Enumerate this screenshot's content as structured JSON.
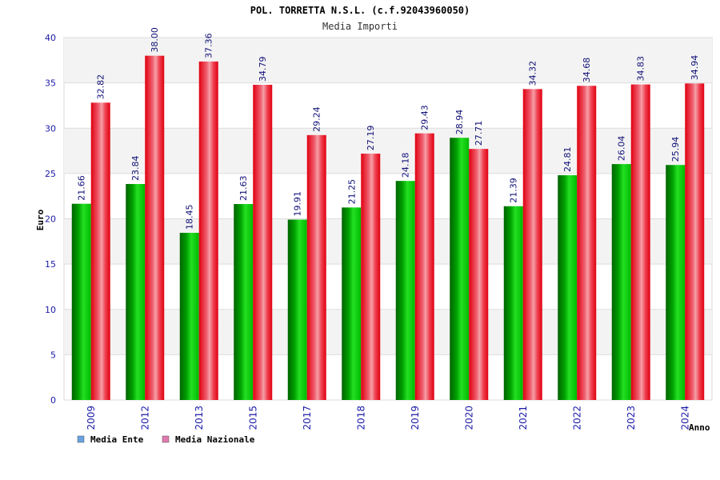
{
  "chart_data": {
    "type": "bar",
    "title": "POL. TORRETTA N.S.L. (c.f.92043960050)",
    "subtitle": "Media Importi",
    "xlabel": "Anno",
    "ylabel": "Euro",
    "ylim": [
      0,
      40
    ],
    "yticks": [
      0,
      5,
      10,
      15,
      20,
      25,
      30,
      35,
      40
    ],
    "grid": true,
    "legend_position": "bottom-left",
    "categories": [
      "2009",
      "2012",
      "2013",
      "2015",
      "2017",
      "2018",
      "2019",
      "2020",
      "2021",
      "2022",
      "2023",
      "2024"
    ],
    "series": [
      {
        "name": "Media Ente",
        "color": "#00b000",
        "legend_color": "#66a3e0",
        "values": [
          21.66,
          23.84,
          18.45,
          21.63,
          19.91,
          21.25,
          24.18,
          28.94,
          21.39,
          24.81,
          26.04,
          25.94
        ],
        "labels": [
          "21.66",
          "23.84",
          "18.45",
          "21.63",
          "19.91",
          "21.25",
          "24.18",
          "28.94",
          "21.39",
          "24.81",
          "26.04",
          "25.94"
        ]
      },
      {
        "name": "Media Nazionale",
        "color": "#f01020",
        "legend_color": "#e07ab0",
        "values": [
          32.82,
          38.0,
          37.36,
          34.79,
          29.24,
          27.19,
          29.43,
          27.71,
          34.32,
          34.68,
          34.83,
          34.94
        ],
        "labels": [
          "32.82",
          "38.00",
          "37.36",
          "34.79",
          "29.24",
          "27.19",
          "29.43",
          "27.71",
          "34.32",
          "34.68",
          "34.83",
          "34.94"
        ]
      }
    ]
  }
}
